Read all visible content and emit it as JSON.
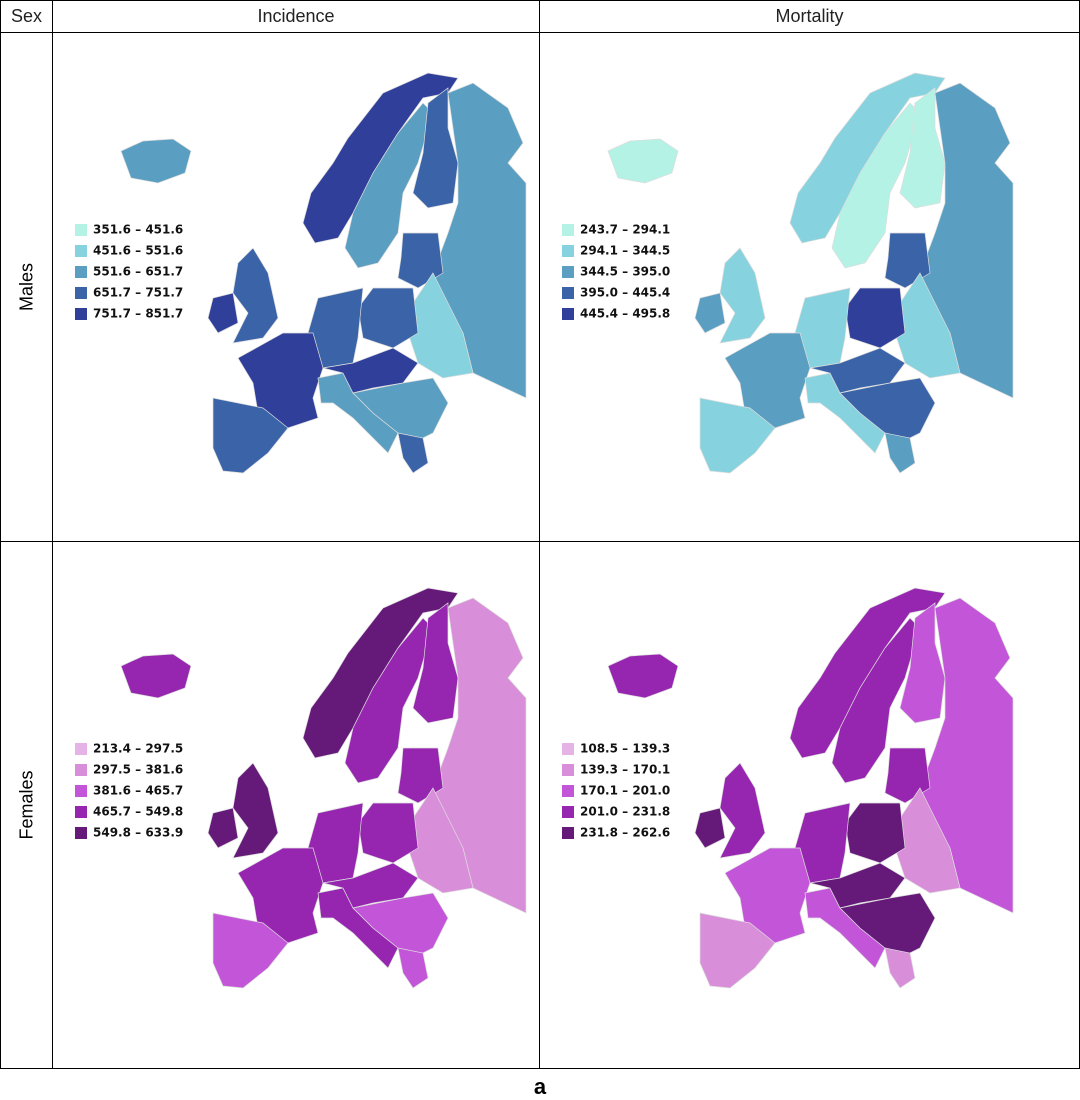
{
  "table": {
    "header": [
      "Sex",
      "Incidence",
      "Mortality"
    ],
    "rows": [
      {
        "label": "Males",
        "maps": [
          {
            "legend": [
              {
                "label": "351.6 – 451.6",
                "color": "#b3f2e4"
              },
              {
                "label": "451.6 – 551.6",
                "color": "#86d2de"
              },
              {
                "label": "551.6 – 651.7",
                "color": "#5a9ec1"
              },
              {
                "label": "651.7 – 751.7",
                "color": "#3a63a8"
              },
              {
                "label": "751.7 – 851.7",
                "color": "#2f3f9a"
              }
            ]
          },
          {
            "legend": [
              {
                "label": "243.7 – 294.1",
                "color": "#b3f2e4"
              },
              {
                "label": "294.1 – 344.5",
                "color": "#86d2de"
              },
              {
                "label": "344.5 – 395.0",
                "color": "#5a9ec1"
              },
              {
                "label": "395.0 – 445.4",
                "color": "#3a63a8"
              },
              {
                "label": "445.4 – 495.8",
                "color": "#2f3f9a"
              }
            ]
          }
        ]
      },
      {
        "label": "Females",
        "maps": [
          {
            "legend": [
              {
                "label": "213.4 – 297.5",
                "color": "#e6b3e6"
              },
              {
                "label": "297.5 – 381.6",
                "color": "#d98ed9"
              },
              {
                "label": "381.6 – 465.7",
                "color": "#c355d9"
              },
              {
                "label": "465.7 – 549.8",
                "color": "#9626b0"
              },
              {
                "label": "549.8 – 633.9",
                "color": "#651a7a"
              }
            ]
          },
          {
            "legend": [
              {
                "label": "108.5 – 139.3",
                "color": "#e6b3e6"
              },
              {
                "label": "139.3 – 170.1",
                "color": "#d98ed9"
              },
              {
                "label": "170.1 – 201.0",
                "color": "#c355d9"
              },
              {
                "label": "201.0 – 231.8",
                "color": "#9626b0"
              },
              {
                "label": "231.8 – 262.6",
                "color": "#651a7a"
              }
            ]
          }
        ]
      }
    ]
  },
  "caption": "a"
}
